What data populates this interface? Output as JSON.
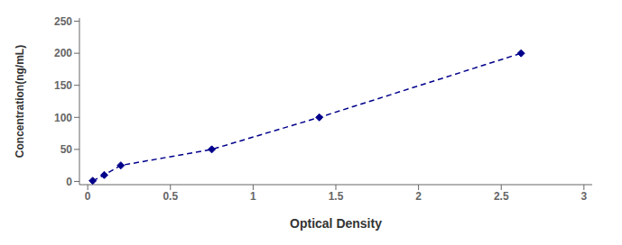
{
  "chart_data": {
    "type": "line",
    "x": [
      0.03,
      0.1,
      0.2,
      0.75,
      1.4,
      2.62
    ],
    "values": [
      1,
      10,
      25,
      50,
      100,
      200
    ],
    "color": "#00008B",
    "marker": "diamond",
    "line_style": "dashed",
    "xlabel": "Optical Density",
    "ylabel": "Concentration(ng/mL)",
    "xlim": [
      -0.05,
      3.05
    ],
    "ylim": [
      -5,
      255
    ],
    "xticks": [
      0,
      0.5,
      1,
      1.5,
      2,
      2.5,
      3
    ],
    "yticks": [
      0,
      50,
      100,
      150,
      200,
      250
    ],
    "grid": false
  }
}
